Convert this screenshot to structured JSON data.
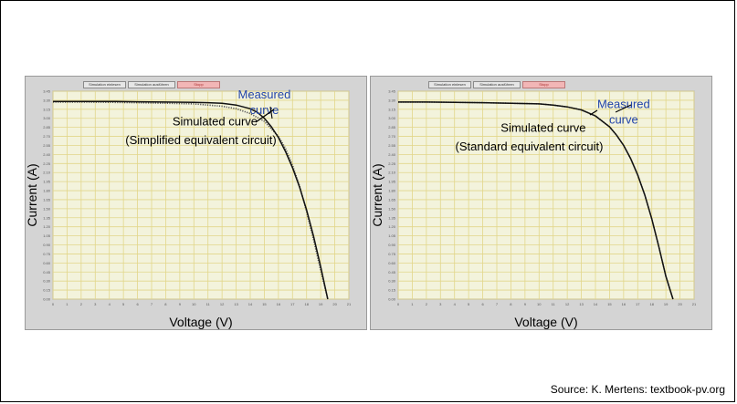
{
  "source_text": "Source: K. Mertens: textbook-pv.org",
  "buttons": [
    "Simulation einlesen",
    "Simulation ausführen",
    "Stopp"
  ],
  "colors": {
    "panel_bg": "#d4d4d4",
    "plot_bg": "#f3f3dc",
    "grid": "#e2d68a",
    "measured_label": "#2244aa",
    "simulated_label": "#000000",
    "measured_curve": "#555555",
    "simulated_curve": "#111111"
  },
  "chart_data": [
    {
      "type": "line",
      "xlabel": "Voltage (V)",
      "ylabel": "Current (A)",
      "xlim": [
        0,
        21
      ],
      "ylim": [
        0,
        3.45
      ],
      "grid": true,
      "x_ticks": [
        0,
        1,
        2,
        3,
        4,
        5,
        6,
        7,
        8,
        9,
        10,
        11,
        12,
        13,
        14,
        15,
        16,
        17,
        18,
        19,
        20,
        21
      ],
      "y_ticks": [
        "0.00",
        "0.15",
        "0.30",
        "0.45",
        "0.60",
        "0.75",
        "0.90",
        "1.05",
        "1.20",
        "1.35",
        "1.50",
        "1.65",
        "1.80",
        "1.95",
        "2.10",
        "2.25",
        "2.40",
        "2.55",
        "2.70",
        "2.85",
        "3.00",
        "3.15",
        "3.30",
        "3.45"
      ],
      "annotations": [
        {
          "text": "Measured",
          "color": "#2244aa",
          "x": 15.0,
          "y": 3.33
        },
        {
          "text": "curve",
          "color": "#2244aa",
          "x": 15.0,
          "y": 3.07
        },
        {
          "text": "Simulated curve",
          "color": "#000000",
          "x": 11.5,
          "y": 2.88
        },
        {
          "text": "(Simplified equivalent circuit)",
          "color": "#000000",
          "x": 10.5,
          "y": 2.57
        }
      ],
      "series": [
        {
          "role": "measured",
          "style": "dotted",
          "x": [
            0,
            2,
            4,
            6,
            8,
            10,
            11,
            12,
            13,
            14,
            15,
            16,
            16.5,
            17,
            17.5,
            18,
            18.5,
            19,
            19.5
          ],
          "y": [
            3.27,
            3.27,
            3.265,
            3.26,
            3.25,
            3.24,
            3.22,
            3.2,
            3.16,
            3.08,
            2.95,
            2.7,
            2.5,
            2.22,
            1.88,
            1.45,
            0.98,
            0.48,
            0.0
          ]
        },
        {
          "role": "simulated",
          "style": "solid",
          "x": [
            0,
            2,
            4,
            6,
            8,
            10,
            11,
            12,
            13,
            14,
            14.5,
            15,
            15.5,
            16,
            16.5,
            17,
            17.5,
            18,
            18.5,
            19,
            19.5
          ],
          "y": [
            3.28,
            3.28,
            3.28,
            3.275,
            3.27,
            3.265,
            3.26,
            3.25,
            3.22,
            3.16,
            3.1,
            3.0,
            2.86,
            2.68,
            2.45,
            2.18,
            1.86,
            1.48,
            1.04,
            0.54,
            0.0
          ]
        }
      ]
    },
    {
      "type": "line",
      "xlabel": "Voltage (V)",
      "ylabel": "Current (A)",
      "xlim": [
        0,
        21
      ],
      "ylim": [
        0,
        3.45
      ],
      "grid": true,
      "x_ticks": [
        0,
        1,
        2,
        3,
        4,
        5,
        6,
        7,
        8,
        9,
        10,
        11,
        12,
        13,
        14,
        15,
        16,
        17,
        18,
        19,
        20,
        21
      ],
      "y_ticks": [
        "0.00",
        "0.15",
        "0.30",
        "0.45",
        "0.60",
        "0.75",
        "0.90",
        "1.05",
        "1.20",
        "1.35",
        "1.50",
        "1.65",
        "1.80",
        "1.95",
        "2.10",
        "2.25",
        "2.40",
        "2.55",
        "2.70",
        "2.85",
        "3.00",
        "3.15",
        "3.30",
        "3.45"
      ],
      "annotations": [
        {
          "text": "Measured",
          "color": "#2244aa",
          "x": 16.0,
          "y": 3.17
        },
        {
          "text": "curve",
          "color": "#2244aa",
          "x": 16.0,
          "y": 2.91
        },
        {
          "text": "Simulated curve",
          "color": "#000000",
          "x": 10.3,
          "y": 2.78
        },
        {
          "text": "(Standard equivalent circuit)",
          "color": "#000000",
          "x": 9.3,
          "y": 2.47
        }
      ],
      "series": [
        {
          "role": "measured",
          "style": "dotted",
          "x": [
            0,
            2,
            4,
            6,
            8,
            10,
            11,
            12,
            13,
            14,
            15,
            15.5,
            16,
            16.5,
            17,
            17.5,
            18,
            18.5,
            19,
            19.5
          ],
          "y": [
            3.27,
            3.27,
            3.265,
            3.26,
            3.25,
            3.24,
            3.22,
            3.19,
            3.14,
            3.04,
            2.86,
            2.72,
            2.55,
            2.33,
            2.06,
            1.73,
            1.33,
            0.87,
            0.38,
            0.0
          ]
        },
        {
          "role": "simulated",
          "style": "solid",
          "x": [
            0,
            2,
            4,
            6,
            8,
            10,
            11,
            12,
            13,
            14,
            15,
            15.5,
            16,
            16.5,
            17,
            17.5,
            18,
            18.5,
            19,
            19.5
          ],
          "y": [
            3.27,
            3.27,
            3.265,
            3.26,
            3.25,
            3.24,
            3.22,
            3.19,
            3.14,
            3.04,
            2.86,
            2.72,
            2.55,
            2.33,
            2.06,
            1.73,
            1.33,
            0.87,
            0.38,
            0.0
          ]
        }
      ]
    }
  ]
}
